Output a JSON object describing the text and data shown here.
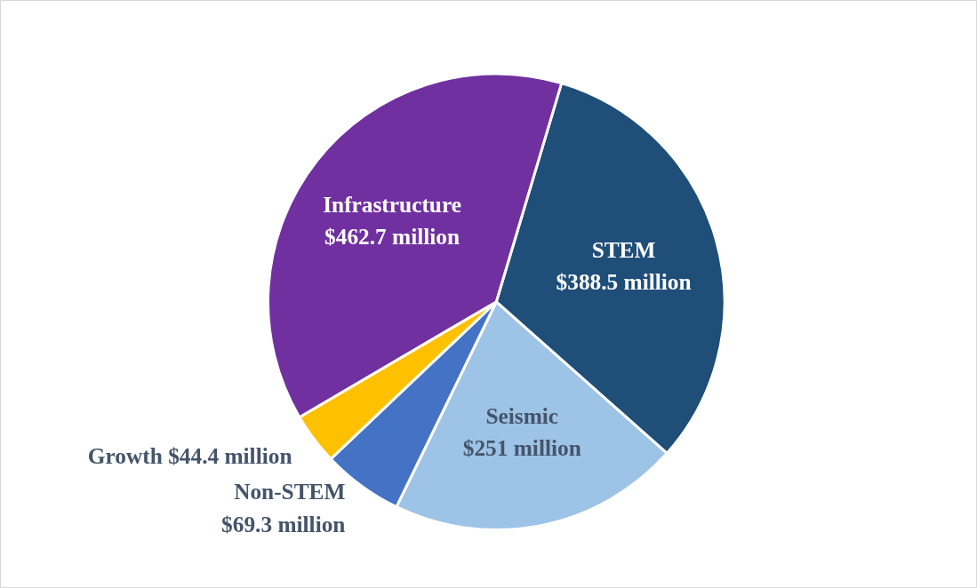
{
  "chart_data": {
    "type": "pie",
    "categories": [
      "STEM",
      "Seismic",
      "Non-STEM",
      "Growth",
      "Infrastructure"
    ],
    "values": [
      388.5,
      251,
      69.3,
      44.4,
      462.7
    ],
    "value_labels": [
      "$388.5 million",
      "$251 million",
      "$69.3 million",
      "$44.4 million",
      "$462.7 million"
    ],
    "colors": [
      "#1f4e79",
      "#9dc3e6",
      "#4472c4",
      "#ffc000",
      "#7030a0"
    ],
    "legend": false
  }
}
